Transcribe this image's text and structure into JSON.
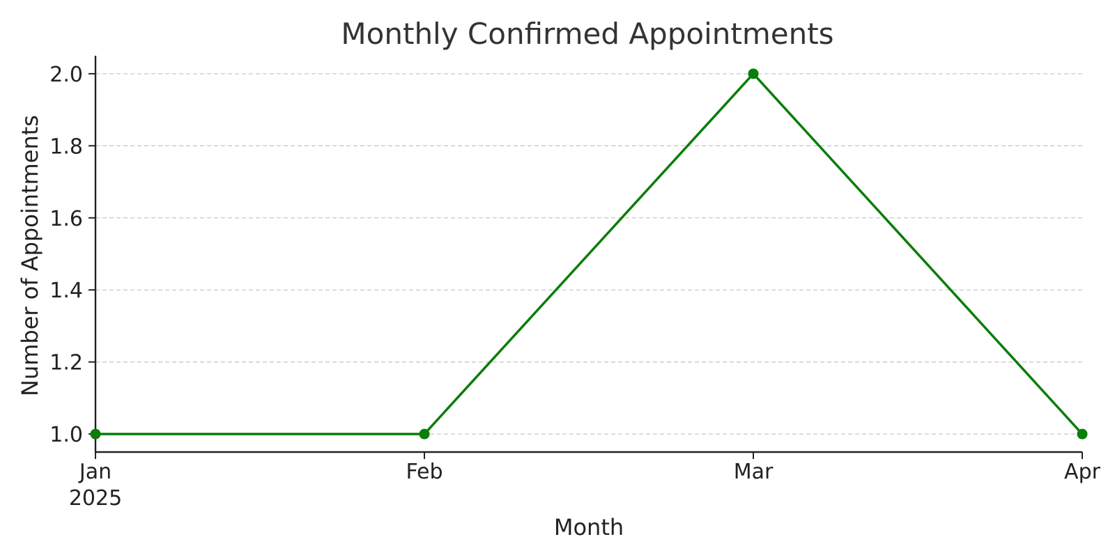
{
  "chart_data": {
    "type": "line",
    "title": "Monthly Confirmed Appointments",
    "xlabel": "Month",
    "ylabel": "Number of Appointments",
    "x": [
      "Jan\n2025",
      "Feb",
      "Mar",
      "Apr"
    ],
    "series": [
      {
        "values": [
          1.0,
          1.0,
          2.0,
          1.0
        ]
      }
    ],
    "ylim": [
      0.95,
      2.05
    ],
    "yticks": [
      "1.0",
      "1.2",
      "1.4",
      "1.6",
      "1.8",
      "2.0"
    ],
    "grid": "horizontal-dashed",
    "colors": {
      "line": "#0a7d0a",
      "axis": "#222222",
      "grid": "#c8c8c8",
      "title": "#333333"
    }
  }
}
